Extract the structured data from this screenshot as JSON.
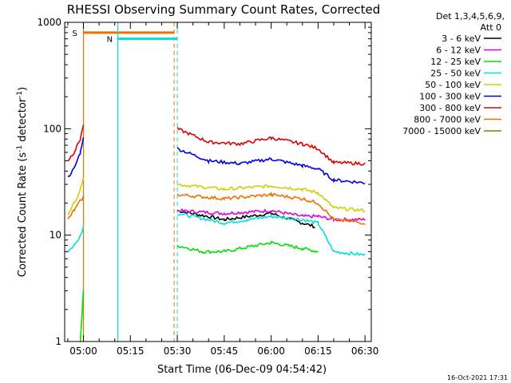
{
  "chart_data": {
    "type": "line",
    "title": "RHESSI Observing Summary Count Rates, Corrected",
    "xlabel": "Start Time (06-Dec-09 04:54:42)",
    "ylabel_main": "Corrected Count Rate (s",
    "ylabel_sup1": "-1",
    "ylabel_mid": " detector",
    "ylabel_sup2": "-1",
    "ylabel_end": ")",
    "yscale": "log",
    "ylim": [
      1,
      1000
    ],
    "xlim": [
      "04:54:42",
      "06:32:00"
    ],
    "x_ticks": [
      "05:00",
      "05:15",
      "05:30",
      "05:45",
      "06:00",
      "06:15",
      "06:30"
    ],
    "y_ticks": [
      "1",
      "10",
      "100",
      "1000"
    ],
    "legend_header": [
      "Det 1,3,4,5,6,9,",
      "Att 0"
    ],
    "legend_position": "right",
    "timestamp": "16-Oct-2021 17:31",
    "grid": false,
    "series": [
      {
        "name": "3 - 6 keV",
        "color": "#000000",
        "points": [
          [
            "04:55",
            null
          ],
          [
            "05:00",
            null
          ],
          [
            "05:30",
            17
          ],
          [
            "05:45",
            14
          ],
          [
            "06:00",
            16
          ],
          [
            "06:10",
            13
          ],
          [
            "06:14",
            12
          ]
        ]
      },
      {
        "name": "6 - 12 keV",
        "color": "#e000e0",
        "points": [
          [
            "05:30",
            17
          ],
          [
            "05:45",
            16
          ],
          [
            "06:00",
            17
          ],
          [
            "06:10",
            15
          ],
          [
            "06:15",
            15
          ],
          [
            "06:20",
            14
          ],
          [
            "06:30",
            14
          ]
        ]
      },
      {
        "name": "12 - 25 keV",
        "color": "#00e000",
        "points": [
          [
            "04:59",
            1
          ],
          [
            "05:00",
            3
          ],
          [
            "05:30",
            8
          ],
          [
            "05:38",
            7
          ],
          [
            "05:45",
            7
          ],
          [
            "06:00",
            8.5
          ],
          [
            "06:10",
            7.5
          ],
          [
            "06:15",
            7
          ]
        ]
      },
      {
        "name": "25 - 50 keV",
        "color": "#00e0e0",
        "points": [
          [
            "04:55",
            7
          ],
          [
            "04:57",
            8
          ],
          [
            "04:59",
            10
          ],
          [
            "05:00",
            12
          ],
          [
            "05:30",
            16
          ],
          [
            "05:45",
            13
          ],
          [
            "06:00",
            15
          ],
          [
            "06:10",
            14
          ],
          [
            "06:15",
            13
          ],
          [
            "06:20",
            7
          ],
          [
            "06:30",
            6.5
          ]
        ]
      },
      {
        "name": "50 - 100 keV",
        "color": "#d0d000",
        "points": [
          [
            "04:55",
            16
          ],
          [
            "04:57",
            20
          ],
          [
            "04:59",
            27
          ],
          [
            "05:00",
            36
          ],
          [
            "05:30",
            30
          ],
          [
            "05:45",
            27
          ],
          [
            "06:00",
            29
          ],
          [
            "06:10",
            27
          ],
          [
            "06:15",
            25
          ],
          [
            "06:20",
            18
          ],
          [
            "06:30",
            17
          ]
        ]
      },
      {
        "name": "100 - 300 keV",
        "color": "#0000e0",
        "points": [
          [
            "04:55",
            35
          ],
          [
            "04:57",
            42
          ],
          [
            "04:59",
            60
          ],
          [
            "05:00",
            85
          ],
          [
            "05:30",
            65
          ],
          [
            "05:40",
            50
          ],
          [
            "05:50",
            47
          ],
          [
            "06:00",
            52
          ],
          [
            "06:10",
            45
          ],
          [
            "06:15",
            42
          ],
          [
            "06:20",
            33
          ],
          [
            "06:30",
            31
          ]
        ]
      },
      {
        "name": "300 - 800 keV",
        "color": "#e00000",
        "points": [
          [
            "04:55",
            50
          ],
          [
            "04:57",
            60
          ],
          [
            "04:59",
            80
          ],
          [
            "05:00",
            110
          ],
          [
            "05:30",
            100
          ],
          [
            "05:40",
            75
          ],
          [
            "05:50",
            72
          ],
          [
            "06:00",
            82
          ],
          [
            "06:10",
            72
          ],
          [
            "06:15",
            65
          ],
          [
            "06:20",
            48
          ],
          [
            "06:30",
            47
          ]
        ]
      },
      {
        "name": "800 - 7000 keV",
        "color": "#f07000",
        "points": [
          [
            "04:55",
            14
          ],
          [
            "04:57",
            17
          ],
          [
            "05:00",
            23
          ],
          [
            "05:30",
            24
          ],
          [
            "05:45",
            22
          ],
          [
            "06:00",
            24
          ],
          [
            "06:10",
            22
          ],
          [
            "06:15",
            20
          ],
          [
            "06:20",
            14
          ],
          [
            "06:30",
            13
          ]
        ]
      },
      {
        "name": "7000 - 15000 keV",
        "color": "#808000",
        "points": []
      }
    ],
    "annotations": [
      {
        "label": "S",
        "color": "#f07000",
        "start": "05:00",
        "end": "05:29",
        "level": 800
      },
      {
        "label": "N",
        "color": "#00e0e0",
        "start": "05:11",
        "end": "05:30",
        "level": 700
      }
    ]
  }
}
